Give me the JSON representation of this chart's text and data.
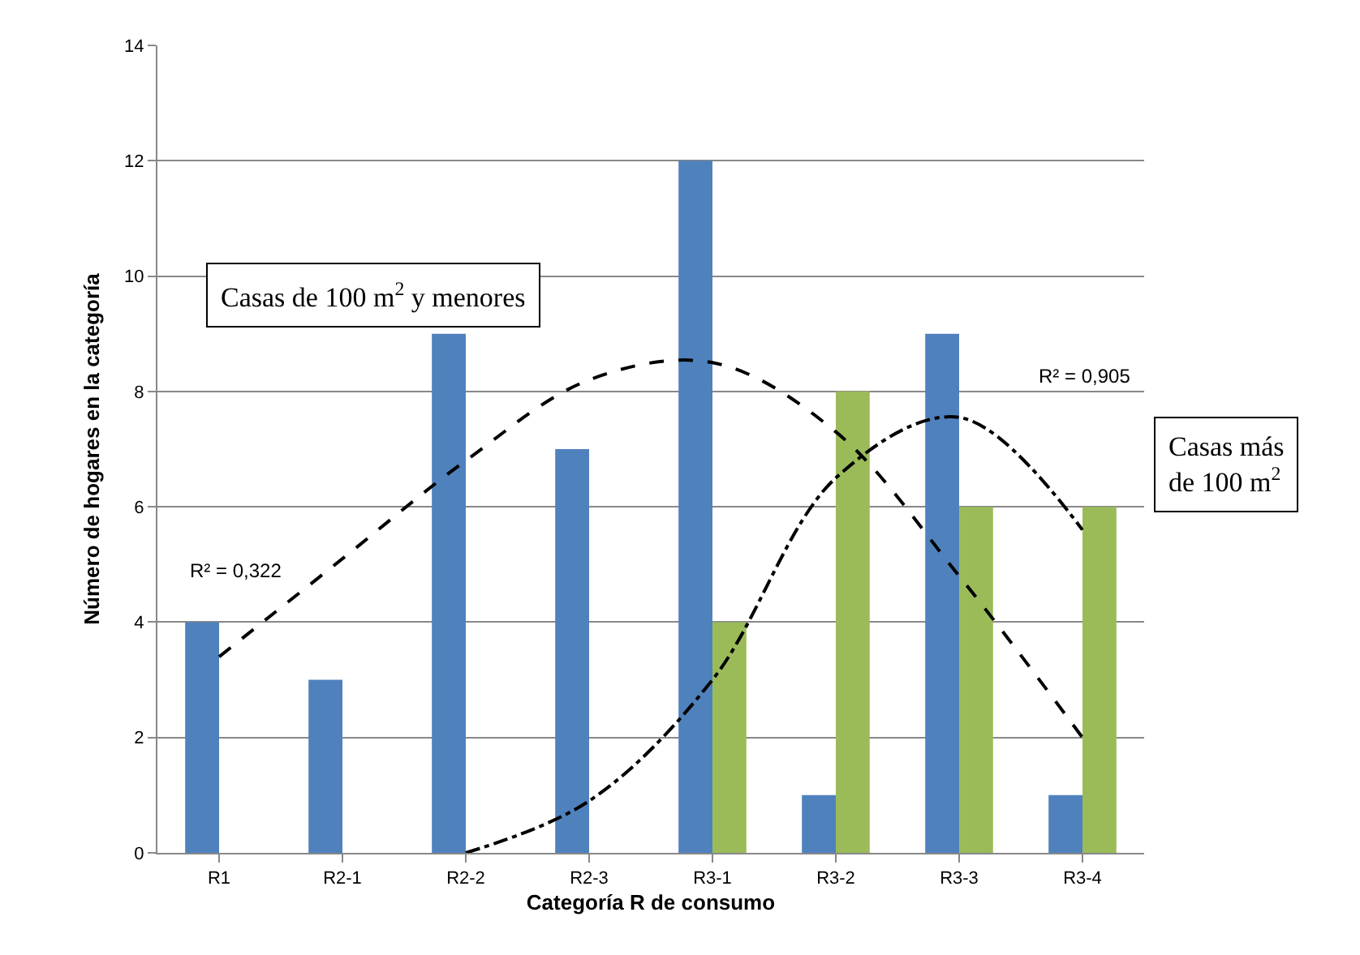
{
  "chart_data": {
    "type": "bar",
    "xlabel": "Categoría R de consumo",
    "ylabel": "Número de hogares en la categoría",
    "categories": [
      "R1",
      "R2-1",
      "R2-2",
      "R2-3",
      "R3-1",
      "R3-2",
      "R3-3",
      "R3-4"
    ],
    "series": [
      {
        "color": "#4f81bd",
        "values": [
          4,
          3,
          9,
          7,
          12,
          1,
          9,
          1
        ]
      },
      {
        "color": "#9bbb59",
        "values": [
          0,
          0,
          0,
          0,
          4,
          8,
          6,
          6
        ]
      },
      {
        "type": "line",
        "color": "#000000",
        "line_style": "dashed",
        "x": [
          "R1",
          "R2-1",
          "R2-2",
          "R2-3",
          "R3-1",
          "R3-2",
          "R3-3",
          "R3-4"
        ],
        "values": [
          3.4,
          5.1,
          6.8,
          8.2,
          8.5,
          7.3,
          4.8,
          2.0
        ]
      },
      {
        "type": "line",
        "color": "#000000",
        "line_style": "dashdot",
        "x": [
          "R1",
          "R2-1",
          "R2-2",
          "R2-3",
          "R3-1",
          "R3-2",
          "R3-3",
          "R3-4"
        ],
        "values": [
          null,
          null,
          0,
          0.9,
          3.0,
          6.5,
          7.55,
          5.6
        ]
      }
    ],
    "ylim": [
      0,
      14
    ],
    "yticks": [
      0,
      2,
      4,
      6,
      8,
      10,
      12,
      14
    ],
    "grid": "y",
    "annotations": [
      "R² = 0,322",
      "R² = 0,905",
      "Casas de 100 m$^{2}$ y menores",
      "Casas más de 100 m$^{2}$"
    ]
  }
}
